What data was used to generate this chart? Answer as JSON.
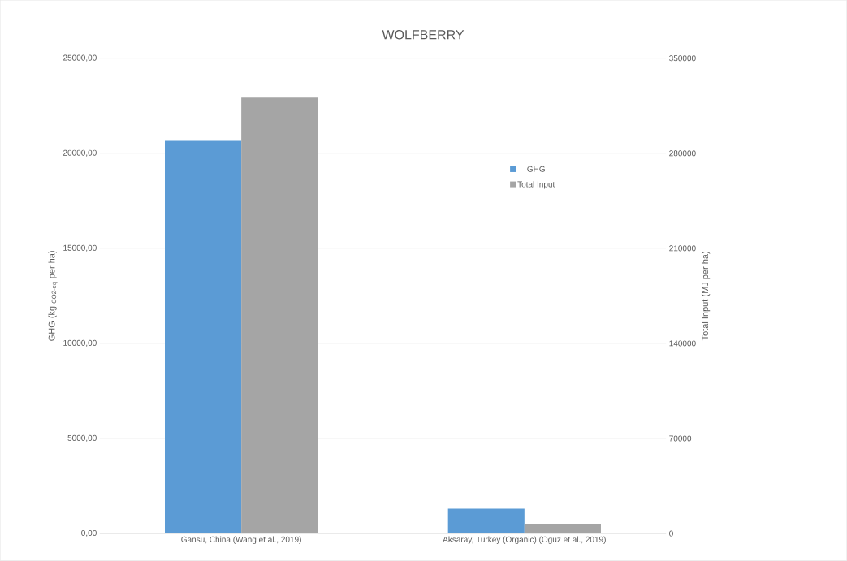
{
  "chart_data": {
    "type": "bar",
    "title": "WOLFBERRY",
    "categories": [
      "Gansu, China (Wang et al., 2019)",
      "Aksaray, Turkey (Organic) (Oguz et al., 2019)"
    ],
    "series": [
      {
        "name": "GHG",
        "color": "#5b9bd5",
        "values": [
          20650,
          1300
        ]
      },
      {
        "name": "Total Input",
        "color": "#a5a5a5",
        "values": [
          321000,
          6600
        ],
        "axis": "y2"
      }
    ],
    "ylabel": "GHG (kg $_{CO2-eq}$ per ha)",
    "y2label": "Total Input (MJ per ha)",
    "ylim": [
      0,
      25000
    ],
    "yticks": [
      {
        "value": 0,
        "label": "0,00"
      },
      {
        "value": 5000,
        "label": "5000,00"
      },
      {
        "value": 10000,
        "label": "10000,00"
      },
      {
        "value": 15000,
        "label": "15000,00"
      },
      {
        "value": 20000,
        "label": "20000,00"
      },
      {
        "value": 25000,
        "label": "25000,00"
      }
    ],
    "y2lim": [
      0,
      350000
    ],
    "y2ticks": [
      0,
      70000,
      140000,
      210000,
      280000,
      350000
    ],
    "grid": "y",
    "legend": "right"
  }
}
